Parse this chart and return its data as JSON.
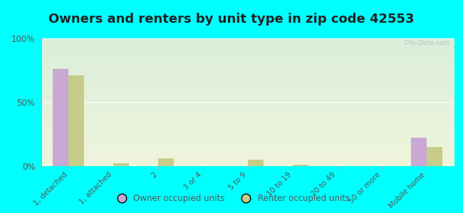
{
  "title": "Owners and renters by unit type in zip code 42553",
  "categories": [
    "1, detached",
    "1, attached",
    "2",
    "3 or 4",
    "5 to 9",
    "10 to 19",
    "20 to 49",
    "50 or more",
    "Mobile home"
  ],
  "owner_values": [
    76,
    0,
    0,
    0,
    0,
    0,
    0,
    0,
    22
  ],
  "renter_values": [
    71,
    2,
    6,
    0,
    5,
    1,
    0,
    0,
    15
  ],
  "owner_color": "#c9a8d4",
  "renter_color": "#c8cc8a",
  "background_color": "#00ffff",
  "plot_bg_top": "#daeeda",
  "plot_bg_bottom": "#f0f5dc",
  "ylim": [
    0,
    100
  ],
  "yticks": [
    0,
    50,
    100
  ],
  "ytick_labels": [
    "0%",
    "50%",
    "100%"
  ],
  "bar_width": 0.35,
  "owner_label": "Owner occupied units",
  "renter_label": "Renter occupied units",
  "watermark": "City-Data.com",
  "title_fontsize": 13,
  "tick_fontsize": 7.5,
  "legend_fontsize": 8.5
}
